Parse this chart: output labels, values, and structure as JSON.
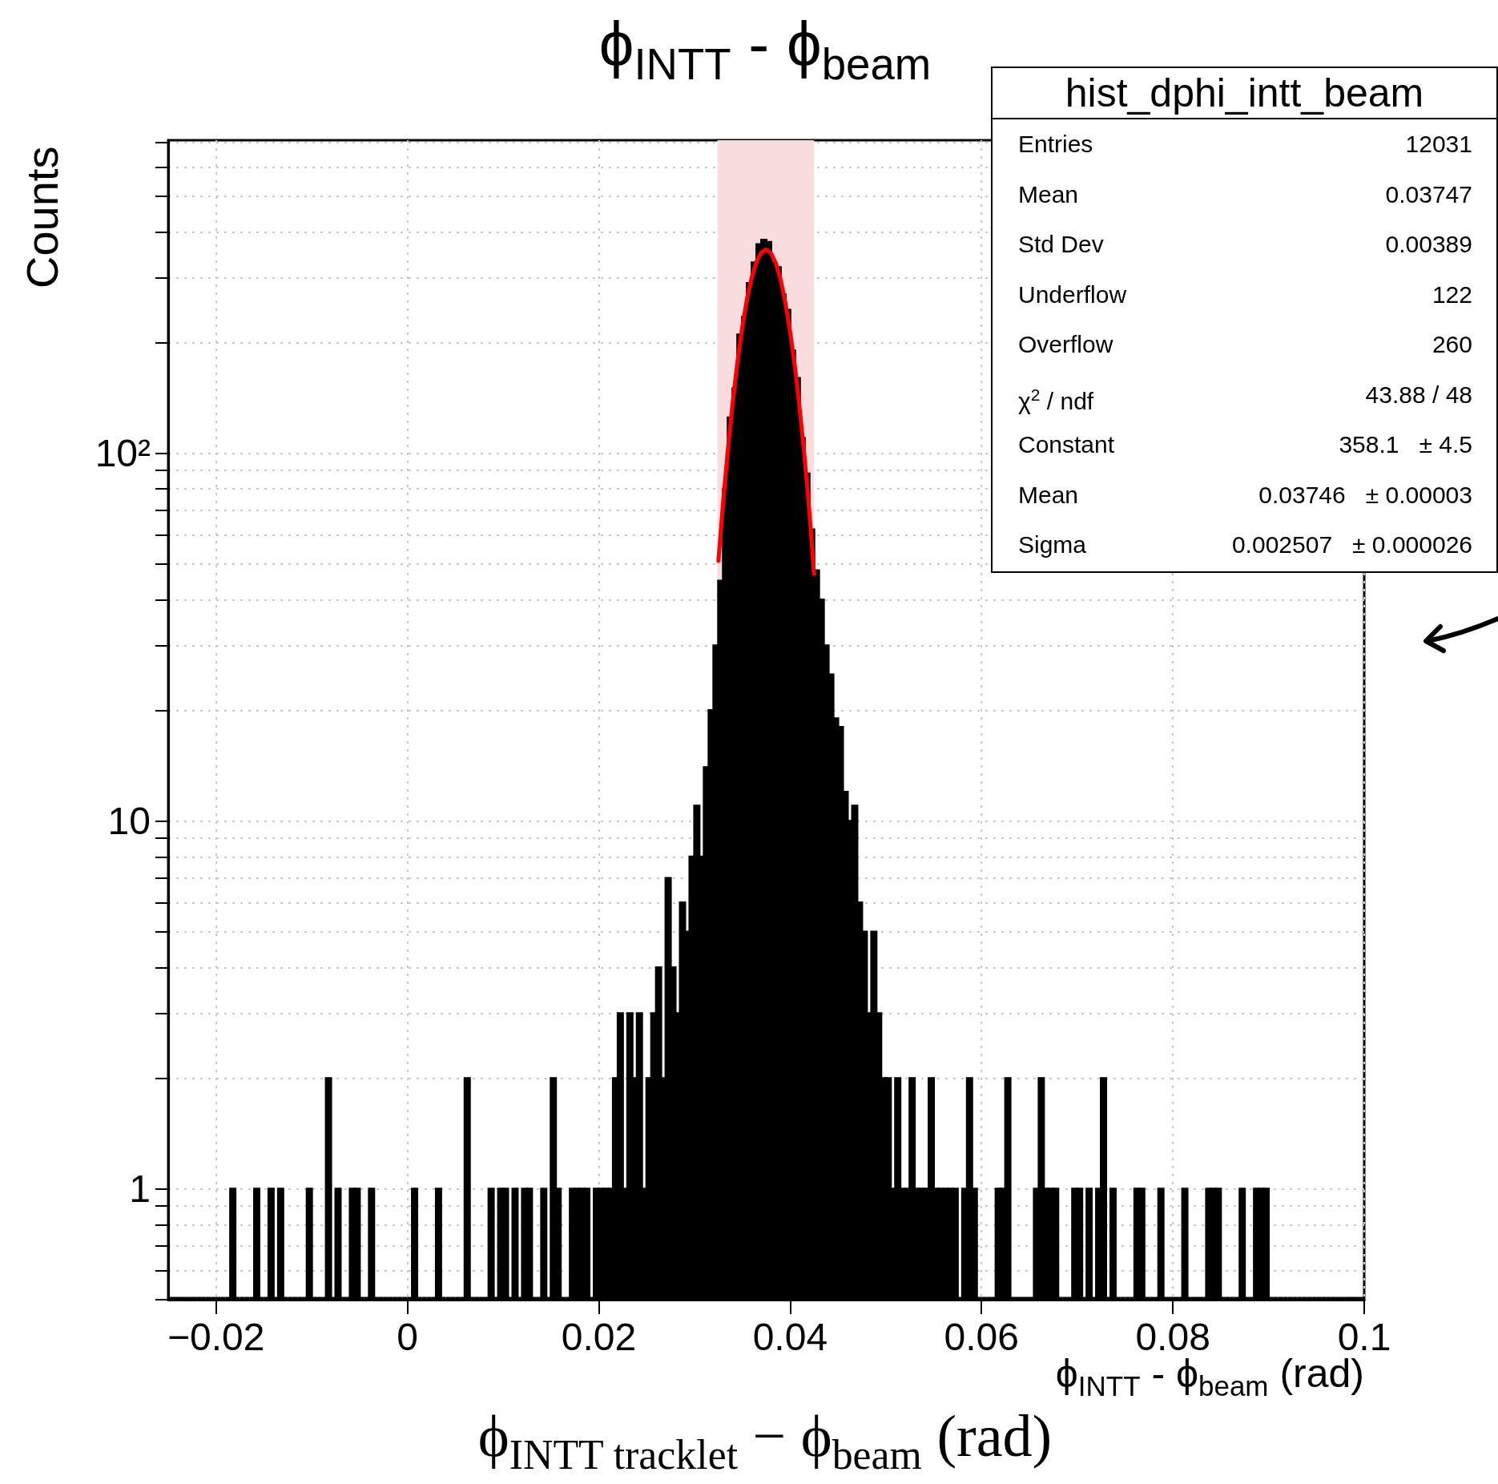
{
  "chart_data": {
    "type": "histogram",
    "title": "ϕ$_{INTT}$ -   ϕ$_{beam}$",
    "xlabel": "ϕ$_{INTT}$ -   ϕ$_{beam}$ (rad)",
    "ylabel": "Counts",
    "annotations": [
      "ϕ$_{INTT tracklet}$ − ϕ$_{beam}$ (rad)",
      "hist_dphi_intt_beam",
      "Entries",
      "12031",
      "Mean",
      "0.03747",
      "Std Dev",
      "0.00389",
      "Underflow",
      "122",
      "Overflow",
      "260",
      "χ$^{2}$ / ndf",
      "43.88 / 48",
      "Constant",
      "358.1  ± 4.5",
      "Mean",
      "0.03746  ± 0.00003",
      "Sigma",
      "0.002507  ± 0.000026"
    ],
    "bins": [
      -0.025,
      -0.0245,
      -0.024,
      -0.0235,
      -0.023,
      -0.0225,
      -0.022,
      -0.0215,
      -0.021,
      -0.0205,
      -0.02,
      -0.0195,
      -0.019,
      -0.0185,
      -0.018,
      -0.0175,
      -0.017,
      -0.0165,
      -0.016,
      -0.0155,
      -0.015,
      -0.0145,
      -0.014,
      -0.0135,
      -0.013,
      -0.0125,
      -0.012,
      -0.0115,
      -0.011,
      -0.0105,
      -0.01,
      -0.0095,
      -0.009,
      -0.0085,
      -0.008,
      -0.0075,
      -0.007,
      -0.0065,
      -0.006,
      -0.0055,
      -0.005,
      -0.0045,
      -0.004,
      -0.0035,
      -0.003,
      -0.0025,
      -0.002,
      -0.0015,
      -0.001,
      -0.0005,
      0,
      0.0005,
      0.001,
      0.0015,
      0.002,
      0.0025,
      0.003,
      0.0035,
      0.004,
      0.0045,
      0.005,
      0.0055,
      0.006,
      0.0065,
      0.007,
      0.0075,
      0.008,
      0.0085,
      0.009,
      0.0095,
      0.01,
      0.0105,
      0.011,
      0.0115,
      0.012,
      0.0125,
      0.013,
      0.0135,
      0.014,
      0.0145,
      0.015,
      0.0155,
      0.016,
      0.0165,
      0.017,
      0.0175,
      0.018,
      0.0185,
      0.019,
      0.0195,
      0.02,
      0.0205,
      0.021,
      0.0215,
      0.022,
      0.0225,
      0.023,
      0.0235,
      0.024,
      0.0245,
      0.025,
      0.0255,
      0.026,
      0.0265,
      0.027,
      0.0275,
      0.028,
      0.0285,
      0.029,
      0.0295,
      0.03,
      0.0305,
      0.031,
      0.0315,
      0.032,
      0.0325,
      0.033,
      0.0335,
      0.034,
      0.0345,
      0.035,
      0.0355,
      0.036,
      0.0365,
      0.037,
      0.0375,
      0.038,
      0.0385,
      0.039,
      0.0395,
      0.04,
      0.0405,
      0.041,
      0.0415,
      0.042,
      0.0425,
      0.043,
      0.0435,
      0.044,
      0.0445,
      0.045,
      0.0455,
      0.046,
      0.0465,
      0.047,
      0.0475,
      0.048,
      0.0485,
      0.049,
      0.0495,
      0.05,
      0.0505,
      0.051,
      0.0515,
      0.052,
      0.0525,
      0.053,
      0.0535,
      0.054,
      0.0545,
      0.055,
      0.0555,
      0.056,
      0.0565,
      0.057,
      0.0575,
      0.058,
      0.0585,
      0.059,
      0.0595,
      0.06,
      0.0605,
      0.061,
      0.0615,
      0.062,
      0.0625,
      0.063,
      0.0635,
      0.064,
      0.0645,
      0.065,
      0.0655,
      0.066,
      0.0665,
      0.067,
      0.0675,
      0.068,
      0.0685,
      0.069,
      0.0695,
      0.07,
      0.0705,
      0.071,
      0.0715,
      0.072,
      0.0725,
      0.073,
      0.0735,
      0.074,
      0.0745,
      0.075,
      0.0755,
      0.076,
      0.0765,
      0.077,
      0.0775,
      0.078,
      0.0785,
      0.079,
      0.0795,
      0.08,
      0.0805,
      0.081,
      0.0815,
      0.082,
      0.0825,
      0.083,
      0.0835,
      0.084,
      0.0845,
      0.085,
      0.0855,
      0.086,
      0.0865,
      0.087,
      0.0875,
      0.088,
      0.0885,
      0.089,
      0.0895,
      0.09,
      0.0905,
      0.091,
      0.0915,
      0.092,
      0.0925,
      0.093,
      0.0935,
      0.094,
      0.0945,
      0.095,
      0.0955,
      0.096,
      0.0965,
      0.097,
      0.0975,
      0.098,
      0.0985,
      0.099,
      0.0995,
      0.1
    ],
    "values": [
      null,
      null,
      null,
      null,
      null,
      null,
      null,
      null,
      null,
      null,
      null,
      null,
      null,
      1,
      null,
      null,
      null,
      null,
      1,
      null,
      null,
      1,
      null,
      1,
      null,
      null,
      null,
      null,
      null,
      1,
      null,
      null,
      null,
      2,
      null,
      1,
      null,
      null,
      1,
      1,
      null,
      null,
      1,
      null,
      null,
      null,
      null,
      null,
      null,
      null,
      null,
      1,
      null,
      null,
      null,
      null,
      1,
      null,
      null,
      null,
      null,
      null,
      2,
      null,
      null,
      null,
      null,
      1,
      null,
      1,
      1,
      null,
      1,
      null,
      1,
      1,
      null,
      null,
      1,
      null,
      2,
      1,
      null,
      null,
      1,
      1,
      1,
      1,
      null,
      1,
      1,
      1,
      1,
      2,
      3,
      1,
      3,
      2,
      3,
      1,
      2,
      3,
      4,
      2,
      7,
      4,
      3,
      6,
      5,
      8,
      11,
      8,
      14,
      20,
      30,
      45,
      80,
      125,
      150,
      210,
      235,
      290,
      330,
      370,
      380,
      375,
      330,
      320,
      270,
      245,
      190,
      160,
      110,
      88,
      62,
      48,
      40,
      30,
      25,
      19,
      18,
      12,
      10,
      11,
      6,
      5,
      3,
      5,
      3,
      2,
      2,
      1,
      2,
      1,
      1,
      2,
      1,
      1,
      1,
      2,
      1,
      1,
      1,
      1,
      1,
      null,
      1,
      2,
      1,
      null,
      null,
      null,
      null,
      1,
      1,
      2,
      null,
      null,
      null,
      null,
      null,
      1,
      2,
      1,
      1,
      1,
      null,
      null,
      null,
      1,
      1,
      null,
      1,
      null,
      1,
      2,
      null,
      1,
      null,
      null,
      null,
      null,
      1,
      1,
      null,
      null,
      null,
      1,
      null,
      null,
      null,
      null,
      1,
      null,
      null,
      null,
      null,
      1,
      1,
      1,
      null,
      null,
      null,
      null,
      1,
      null,
      null,
      1,
      1,
      1,
      null,
      null,
      null,
      null,
      null,
      null,
      null,
      null,
      null,
      null,
      null,
      null,
      null,
      null,
      null,
      null,
      null,
      null,
      null,
      null
    ],
    "color": "#000000",
    "series": [
      {
        "type": "line",
        "color": "#ff0000",
        "x": [
          0.0325,
          0.033,
          0.0335,
          0.034,
          0.0345,
          0.035,
          0.0355,
          0.036,
          0.0365,
          0.037,
          0.0375,
          0.038,
          0.0385,
          0.039,
          0.0395,
          0.04,
          0.0405,
          0.041,
          0.0415,
          0.042,
          0.0425
        ],
        "values": [
          51,
          74,
          103,
          138,
          178,
          221,
          264,
          302,
          333,
          352,
          358,
          350,
          329,
          297,
          257,
          214,
          172,
          132,
          98,
          70,
          47
        ]
      }
    ],
    "bands": [
      {
        "axis": "x",
        "from": 0.0324,
        "to": 0.0425,
        "color": "#f9dcdd"
      }
    ],
    "xlim": [
      -0.025,
      0.1
    ],
    "xticks": [
      {
        "value": -0.02,
        "label": "−0.02"
      },
      0,
      0.02,
      0.04,
      0.06,
      0.08,
      0.1
    ],
    "ylim": [
      0.5,
      710
    ],
    "yticks": [
      {
        "value": 0.5,
        "label": null
      },
      {
        "value": 0.6,
        "label": null
      },
      {
        "value": 0.7,
        "label": null
      },
      {
        "value": 0.8,
        "label": null
      },
      {
        "value": 0.9,
        "label": null
      },
      1,
      {
        "value": 2,
        "label": null
      },
      {
        "value": 3,
        "label": null
      },
      {
        "value": 4,
        "label": null
      },
      {
        "value": 5,
        "label": null
      },
      {
        "value": 6,
        "label": null
      },
      {
        "value": 7,
        "label": null
      },
      {
        "value": 8,
        "label": null
      },
      {
        "value": 9,
        "label": null
      },
      10,
      {
        "value": 20,
        "label": null
      },
      {
        "value": 30,
        "label": null
      },
      {
        "value": 40,
        "label": null
      },
      {
        "value": 50,
        "label": null
      },
      {
        "value": 60,
        "label": null
      },
      {
        "value": 70,
        "label": null
      },
      {
        "value": 80,
        "label": null
      },
      {
        "value": 90,
        "label": null
      },
      {
        "value": 100,
        "label": "10²"
      },
      {
        "value": 200,
        "label": null
      },
      {
        "value": 300,
        "label": null
      },
      {
        "value": 400,
        "label": null
      },
      {
        "value": 500,
        "label": null
      },
      {
        "value": 600,
        "label": null
      },
      {
        "value": 700,
        "label": null
      }
    ],
    "log": "y",
    "grid": true
  }
}
